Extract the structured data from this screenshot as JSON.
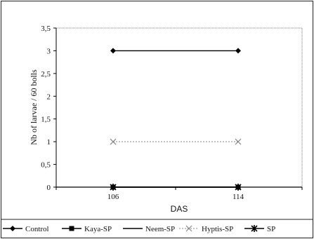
{
  "chart_data": {
    "type": "line",
    "title": "",
    "xlabel": "DAS",
    "ylabel": "Nb of larvae / 60 bolls",
    "categories": [
      "106",
      "114"
    ],
    "ylim": [
      0,
      3.5
    ],
    "yticks": [
      "0",
      "0,5",
      "1",
      "1,5",
      "2",
      "2,5",
      "3",
      "3,5"
    ],
    "grid": false,
    "legend_position": "bottom",
    "series": [
      {
        "name": "Control",
        "values": [
          3,
          3
        ],
        "marker": "diamond",
        "line": "solid",
        "color": "#000000"
      },
      {
        "name": "Kaya-SP",
        "values": [
          0,
          0
        ],
        "marker": "square",
        "line": "solid",
        "color": "#000000"
      },
      {
        "name": "Neem-SP",
        "values": [
          0,
          0
        ],
        "marker": "none",
        "line": "solid",
        "color": "#000000"
      },
      {
        "name": "Hyptis-SP",
        "values": [
          1,
          1
        ],
        "marker": "x",
        "line": "dotted",
        "color": "#888888"
      },
      {
        "name": "SP",
        "values": [
          0,
          0
        ],
        "marker": "star",
        "line": "solid",
        "color": "#000000"
      }
    ]
  }
}
